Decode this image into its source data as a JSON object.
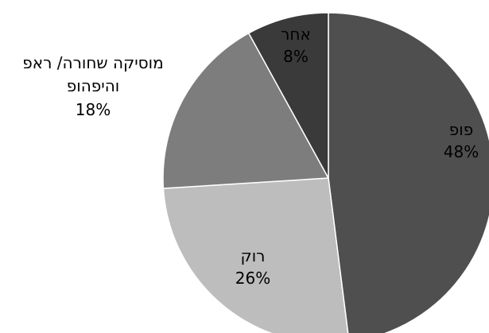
{
  "chart_data": {
    "type": "pie",
    "slices": [
      {
        "label": "פופ",
        "value": 48,
        "value_label": "48%",
        "color": "#4f4f4f"
      },
      {
        "label": "רוק",
        "value": 26,
        "value_label": "26%",
        "color": "#bdbdbd"
      },
      {
        "label": "מוסיקה שחורה/ ראפ",
        "label_line2": "והיפהופ",
        "value": 18,
        "value_label": "18%",
        "color": "#7d7d7d"
      },
      {
        "label": "אחר",
        "value": 8,
        "value_label": "8%",
        "color": "#3a3a3a"
      }
    ]
  }
}
